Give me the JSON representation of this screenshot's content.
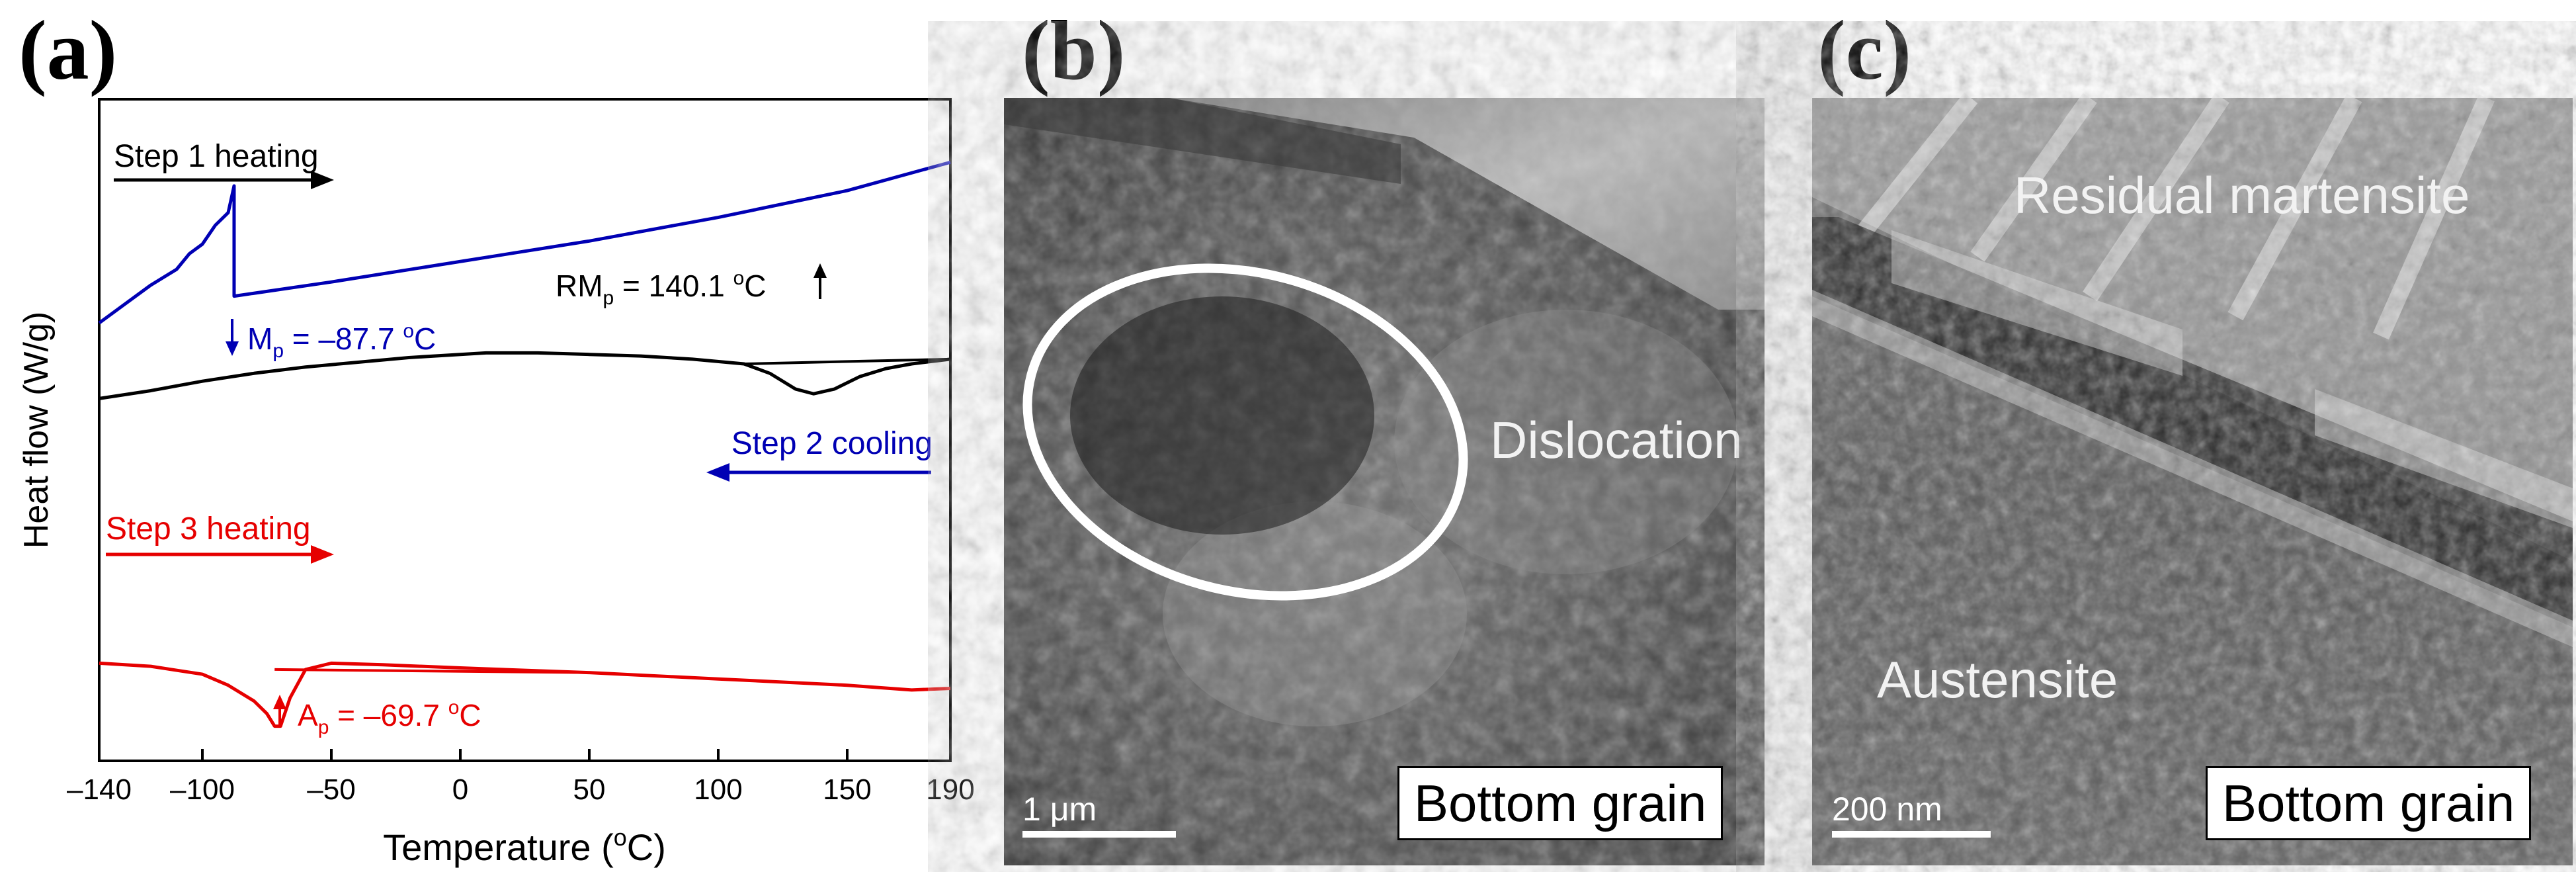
{
  "panels": {
    "a": {
      "label": "(a)",
      "chart_data": {
        "type": "line",
        "xlabel": "Temperature (°C)",
        "ylabel": "Heat flow (W/g)",
        "xlim": [
          -140,
          190
        ],
        "xticks": [
          -140,
          -100,
          -50,
          0,
          50,
          100,
          150,
          190
        ],
        "yticks_shown": false,
        "series": [
          {
            "name": "Step 1 heating",
            "color": "#000000",
            "x": [
              -140,
              -120,
              -100,
              -80,
              -60,
              -40,
              -20,
              0,
              10,
              30,
              50,
              70,
              90,
              110,
              120,
              130,
              137,
              145,
              155,
              165,
              175,
              190
            ],
            "y": [
              -0.3,
              -0.25,
              -0.19,
              -0.14,
              -0.1,
              -0.07,
              -0.04,
              -0.02,
              -0.01,
              -0.01,
              -0.02,
              -0.03,
              -0.05,
              -0.08,
              -0.14,
              -0.24,
              -0.27,
              -0.24,
              -0.16,
              -0.11,
              -0.08,
              -0.05
            ],
            "baseline": {
              "x": [
                110,
                190
              ],
              "y": [
                -0.08,
                -0.05
              ]
            }
          },
          {
            "name": "Step 2 cooling",
            "color": "#0000b4",
            "x": [
              190,
              150,
              100,
              50,
              0,
              -50,
              -87.7,
              -87.7,
              -90,
              -95,
              -100,
              -105,
              -110,
              -120,
              -130,
              -140
            ],
            "y": [
              1.2,
              1.02,
              0.85,
              0.7,
              0.57,
              0.44,
              0.35,
              1.05,
              0.88,
              0.8,
              0.68,
              0.62,
              0.52,
              0.42,
              0.3,
              0.18
            ],
            "annotation": {
              "label": "M",
              "sub": "p",
              "text": " = –87.7 °C",
              "x": -87.7
            }
          },
          {
            "name": "Step 3 heating",
            "color": "#e60000",
            "x": [
              -140,
              -120,
              -100,
              -90,
              -80,
              -75,
              -72,
              -69.7,
              -66,
              -60,
              -50,
              -30,
              0,
              50,
              100,
              150,
              175,
              190
            ],
            "y": [
              -1.98,
              -2.0,
              -2.05,
              -2.12,
              -2.22,
              -2.3,
              -2.38,
              -2.38,
              -2.2,
              -2.02,
              -1.98,
              -1.99,
              -2.01,
              -2.04,
              -2.08,
              -2.12,
              -2.15,
              -2.14
            ],
            "baseline": {
              "x": [
                -72,
                50
              ],
              "y": [
                -2.02,
                -2.04
              ]
            },
            "annotation": {
              "label": "A",
              "sub": "p",
              "text": " = –69.7 °C",
              "x": -69.7
            }
          }
        ],
        "annotations": [
          {
            "series": "Step 1 heating",
            "label": "RM",
            "sub": "p",
            "text": " = 140.1 °C",
            "x": 140.1
          }
        ],
        "arrow_labels": [
          "Step 1 heating",
          "Step 2 cooling",
          "Step 3 heating"
        ]
      }
    },
    "b": {
      "label": "(b)",
      "annotation": "Dislocation",
      "box_label": "Bottom grain",
      "scale_bar": "1 μm"
    },
    "c": {
      "label": "(c)",
      "label_top": "Residual martensite",
      "label_bottom": "Austensite",
      "box_label": "Bottom grain",
      "scale_bar": "200 nm"
    }
  },
  "labels": {
    "step1": "Step 1 heating",
    "step2": "Step 2 cooling",
    "step3": "Step 3 heating",
    "rm_main": "RM",
    "rm_sub": "p",
    "rm_val": " = 140.1 ",
    "mp_main": "M",
    "mp_sub": "p",
    "mp_val": " = –87.7 ",
    "ap_main": "A",
    "ap_sub": "p",
    "ap_val": " = –69.7 ",
    "deg": "o",
    "unit_c": "C",
    "xlabel_pre": "Temperature (",
    "xlabel_post": "C)",
    "ylabel": "Heat flow (W/g)"
  }
}
